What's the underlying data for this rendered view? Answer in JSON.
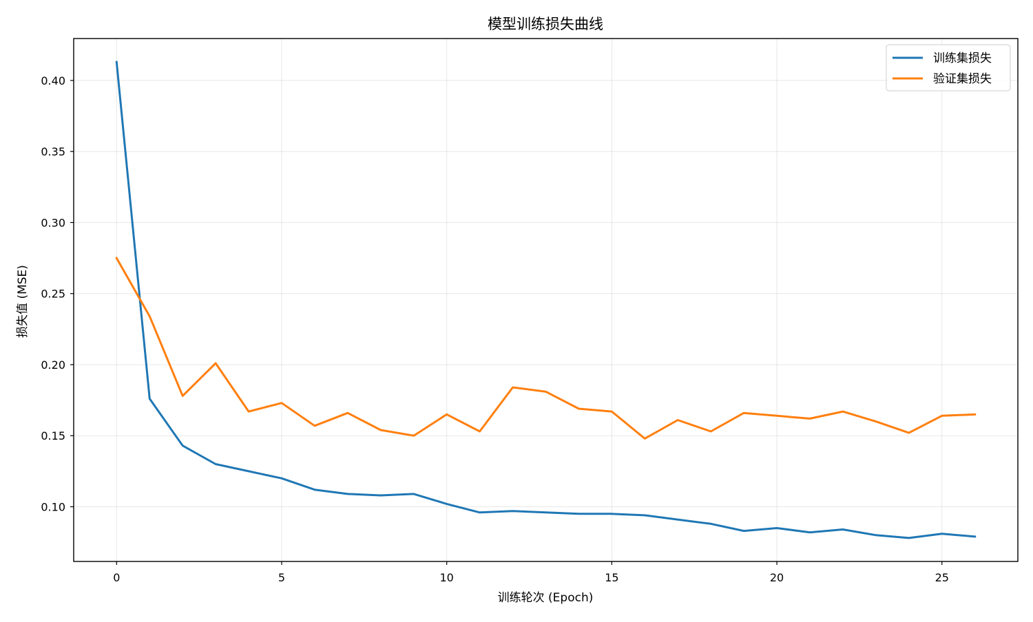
{
  "chart_data": {
    "type": "line",
    "title": "模型训练损失曲线",
    "xlabel": "训练轮次 (Epoch)",
    "ylabel": "损失值 (MSE)",
    "x": [
      0,
      1,
      2,
      3,
      4,
      5,
      6,
      7,
      8,
      9,
      10,
      11,
      12,
      13,
      14,
      15,
      16,
      17,
      18,
      19,
      20,
      21,
      22,
      23,
      24,
      25,
      26
    ],
    "xlim": [
      -1.3,
      27.3
    ],
    "ylim": [
      0.0615,
      0.4295
    ],
    "xticks": [
      0,
      5,
      10,
      15,
      20,
      25
    ],
    "xtick_labels": [
      "0",
      "5",
      "10",
      "15",
      "20",
      "25"
    ],
    "yticks": [
      0.1,
      0.15,
      0.2,
      0.25,
      0.3,
      0.35,
      0.4
    ],
    "ytick_labels": [
      "0.10",
      "0.15",
      "0.20",
      "0.25",
      "0.30",
      "0.35",
      "0.40"
    ],
    "grid": true,
    "legend_position": "top-right",
    "series": [
      {
        "name": "训练集损失",
        "color": "#1f77b4",
        "values": [
          0.413,
          0.176,
          0.143,
          0.13,
          0.125,
          0.12,
          0.112,
          0.109,
          0.108,
          0.109,
          0.102,
          0.096,
          0.097,
          0.096,
          0.095,
          0.095,
          0.094,
          0.091,
          0.088,
          0.083,
          0.085,
          0.082,
          0.084,
          0.08,
          0.078,
          0.081,
          0.079
        ]
      },
      {
        "name": "验证集损失",
        "color": "#ff7f0e",
        "values": [
          0.275,
          0.234,
          0.178,
          0.201,
          0.167,
          0.173,
          0.157,
          0.166,
          0.154,
          0.15,
          0.165,
          0.153,
          0.184,
          0.181,
          0.169,
          0.167,
          0.148,
          0.161,
          0.153,
          0.166,
          0.164,
          0.162,
          0.167,
          0.16,
          0.152,
          0.164,
          0.165
        ]
      }
    ]
  }
}
